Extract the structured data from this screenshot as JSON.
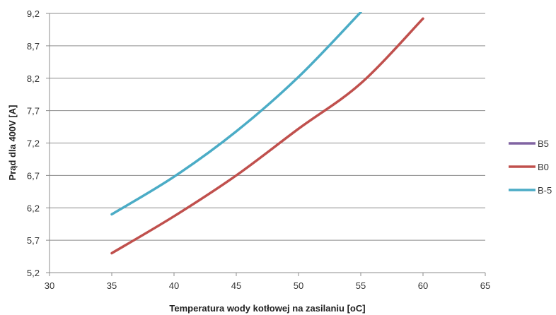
{
  "chart_data": {
    "type": "line",
    "title": "",
    "xlabel": "Temperatura wody kotłowej na zasilaniu [oC]",
    "ylabel": "Prąd dla 400V [A]",
    "xlim": [
      30,
      65
    ],
    "ylim": [
      5.2,
      9.2
    ],
    "x_ticks": [
      30,
      35,
      40,
      45,
      50,
      55,
      60,
      65
    ],
    "x_tick_labels": [
      "30",
      "35",
      "40",
      "45",
      "50",
      "55",
      "60",
      "65"
    ],
    "y_ticks": [
      5.2,
      5.7,
      6.2,
      6.7,
      7.2,
      7.7,
      8.2,
      8.7,
      9.2
    ],
    "y_tick_labels": [
      "5,2",
      "5,7",
      "6,2",
      "6,7",
      "7,2",
      "7,7",
      "8,2",
      "8,7",
      "9,2"
    ],
    "grid": "horizontal",
    "legend_position": "right",
    "series": [
      {
        "name": "B5",
        "color": "#8064A2",
        "points": []
      },
      {
        "name": "B0",
        "color": "#C0504D",
        "points": [
          [
            35,
            5.5
          ],
          [
            40,
            6.07
          ],
          [
            45,
            6.7
          ],
          [
            50,
            7.42
          ],
          [
            55,
            8.12
          ],
          [
            60,
            9.12
          ]
        ]
      },
      {
        "name": "B-5",
        "color": "#4BACC6",
        "points": [
          [
            35,
            6.1
          ],
          [
            40,
            6.68
          ],
          [
            45,
            7.38
          ],
          [
            50,
            8.22
          ],
          [
            55,
            9.22
          ]
        ]
      }
    ]
  }
}
